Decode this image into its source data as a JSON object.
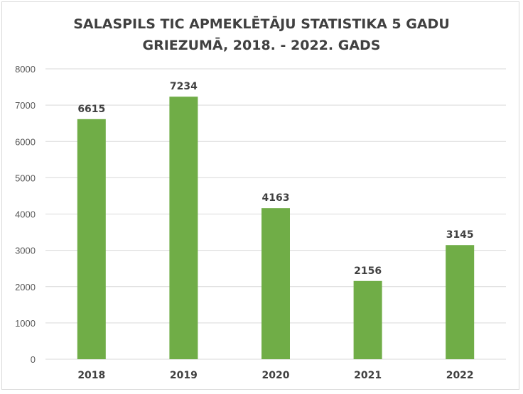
{
  "chart_data": {
    "type": "bar",
    "title_lines": [
      "SALASPILS TIC APMEKLĒTĀJU STATISTIKA 5 GADU",
      "GRIEZUMĀ, 2018. - 2022. GADS"
    ],
    "categories": [
      "2018",
      "2019",
      "2020",
      "2021",
      "2022"
    ],
    "values": [
      6615,
      7234,
      4163,
      2156,
      3145
    ],
    "yticks": [
      0,
      1000,
      2000,
      3000,
      4000,
      5000,
      6000,
      7000,
      8000
    ],
    "ylim": [
      0,
      8000
    ],
    "xlabel": "",
    "ylabel": "",
    "grid": true,
    "legend": "none",
    "bar_color": "#70ad47",
    "grid_color": "#d9d9d9"
  }
}
